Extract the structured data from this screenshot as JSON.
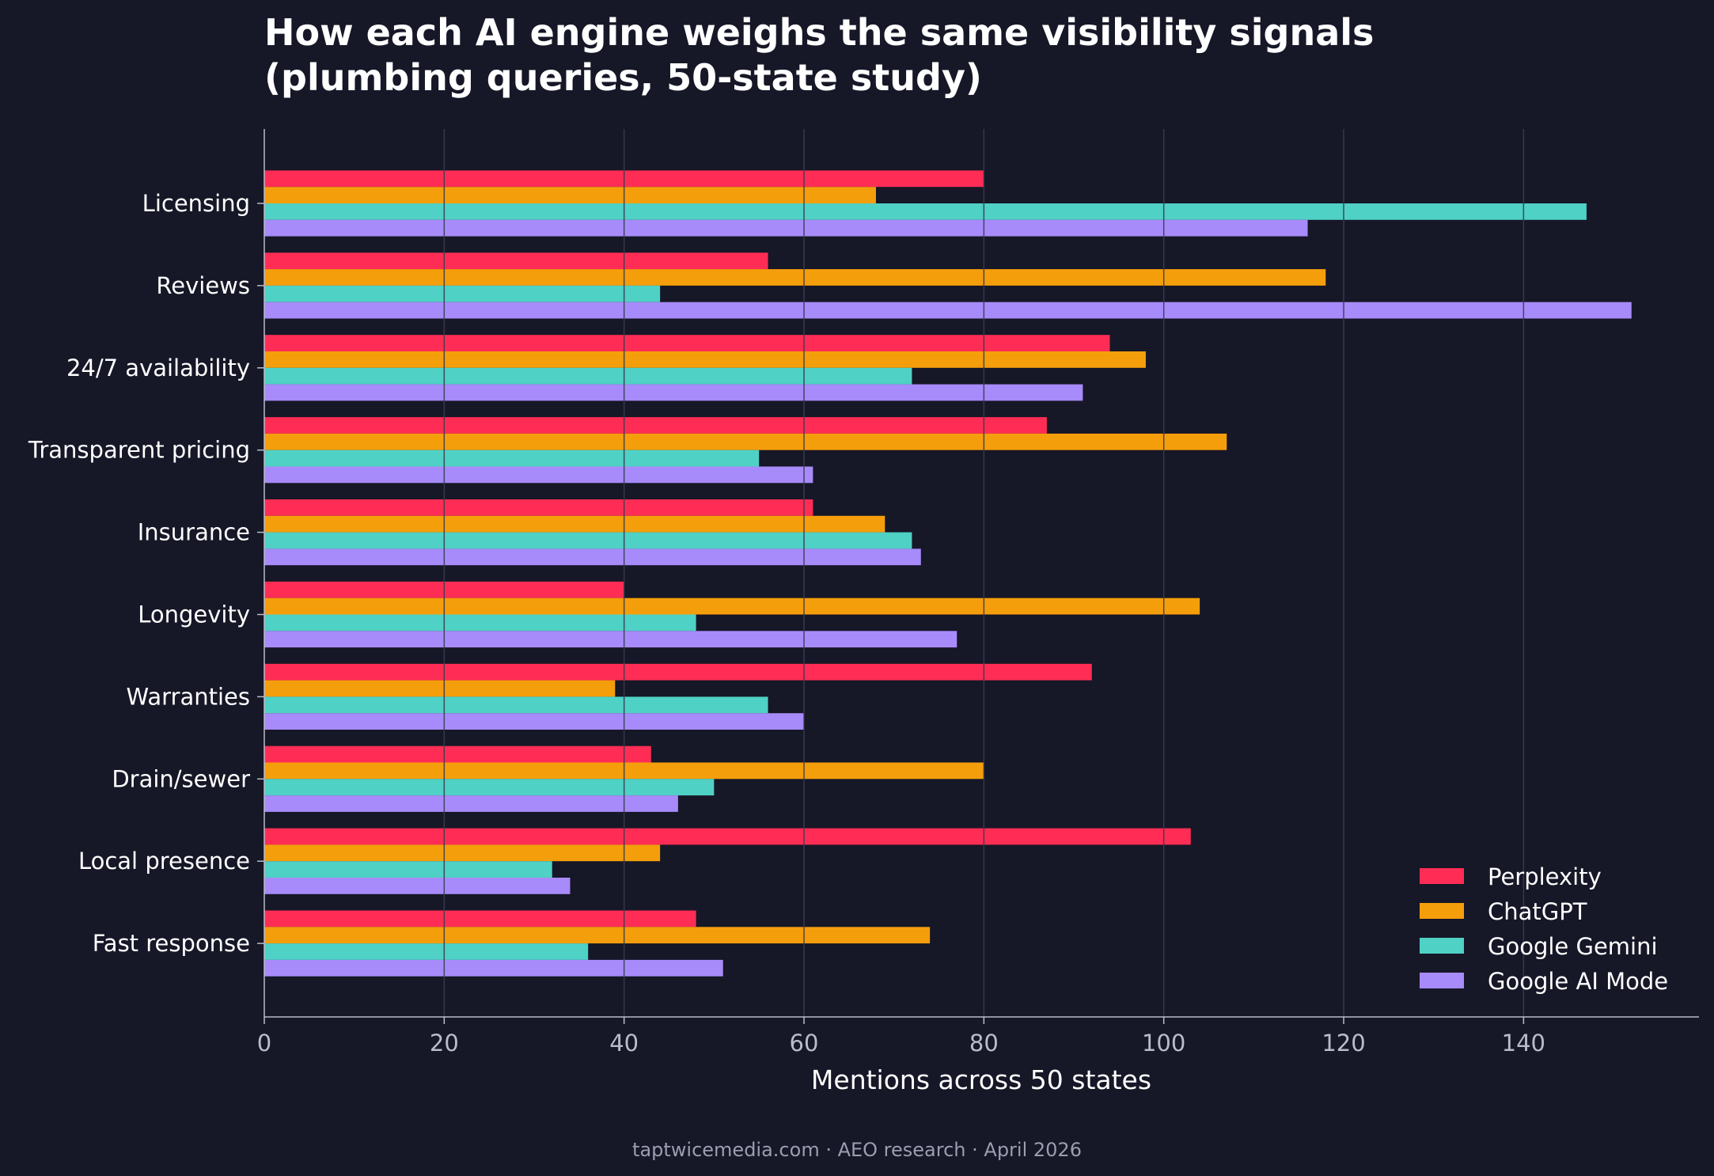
{
  "chart_data": {
    "type": "bar",
    "orientation": "horizontal",
    "title_lines": [
      "How each AI engine weighs the same visibility signals",
      "(plumbing queries, 50-state study)"
    ],
    "xlabel": "Mentions across 50 states",
    "ylabel": "",
    "xlim": [
      0,
      159.5
    ],
    "xticks": [
      0,
      20,
      40,
      60,
      80,
      100,
      120,
      140
    ],
    "grid": "vertical",
    "legend_position": "bottom-right",
    "categories": [
      "Licensing",
      "Reviews",
      "24/7 availability",
      "Transparent pricing",
      "Insurance",
      "Longevity",
      "Warranties",
      "Drain/sewer",
      "Local presence",
      "Fast response"
    ],
    "series": [
      {
        "name": "Perplexity",
        "color": "#ff2d55",
        "values": [
          80,
          56,
          94,
          87,
          61,
          40,
          92,
          43,
          103,
          48
        ]
      },
      {
        "name": "ChatGPT",
        "color": "#f59e0b",
        "values": [
          68,
          118,
          98,
          107,
          69,
          104,
          39,
          80,
          44,
          74
        ]
      },
      {
        "name": "Google Gemini",
        "color": "#4fd1c5",
        "values": [
          147,
          44,
          72,
          55,
          72,
          48,
          56,
          50,
          32,
          36
        ]
      },
      {
        "name": "Google AI Mode",
        "color": "#a78bfa",
        "values": [
          116,
          152,
          91,
          61,
          73,
          77,
          60,
          46,
          34,
          51
        ]
      }
    ],
    "footer": "taptwicemedia.com · AEO research · April 2026"
  }
}
